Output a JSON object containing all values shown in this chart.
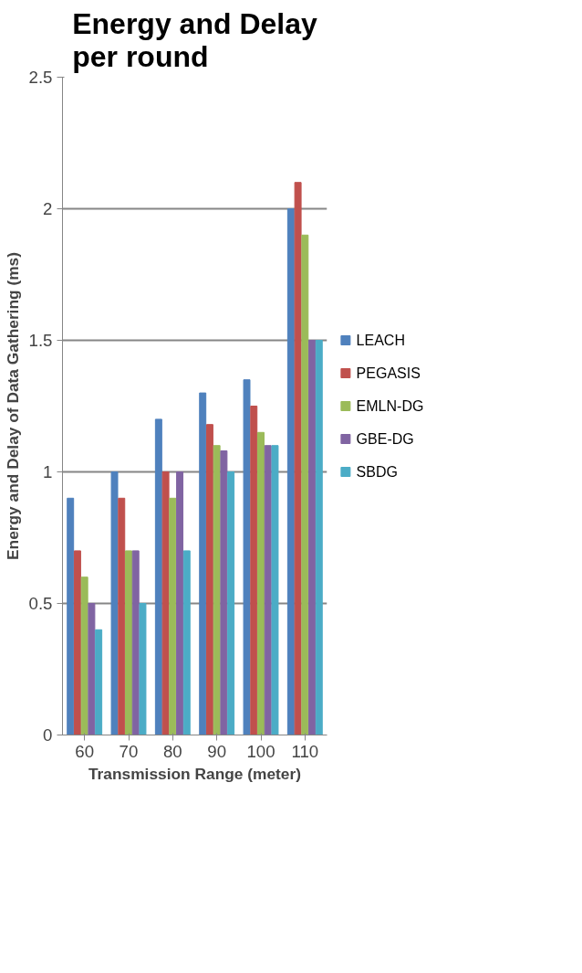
{
  "chart_data": {
    "type": "bar",
    "title": "Energy and Delay per round",
    "xlabel": "Transmission Range (meter)",
    "ylabel": "Energy and Delay of Data Gathering (ms)",
    "categories": [
      "60",
      "70",
      "80",
      "90",
      "100",
      "110"
    ],
    "series": [
      {
        "name": "LEACH",
        "color": "#4f81bd",
        "values": [
          0.9,
          1.0,
          1.2,
          1.3,
          1.35,
          2.0
        ]
      },
      {
        "name": "PEGASIS",
        "color": "#c0504d",
        "values": [
          0.7,
          0.9,
          1.0,
          1.18,
          1.25,
          2.1
        ]
      },
      {
        "name": "EMLN-DG",
        "color": "#9bbb59",
        "values": [
          0.6,
          0.7,
          0.9,
          1.1,
          1.15,
          1.9
        ]
      },
      {
        "name": "GBE-DG",
        "color": "#8064a2",
        "values": [
          0.5,
          0.7,
          1.0,
          1.08,
          1.1,
          1.5
        ]
      },
      {
        "name": "SBDG",
        "color": "#4bacc6",
        "values": [
          0.4,
          0.5,
          0.7,
          1.0,
          1.1,
          1.5
        ]
      }
    ],
    "ylim": [
      0,
      2.5
    ],
    "yticks": [
      0,
      0.5,
      1,
      1.5,
      2,
      2.5
    ],
    "grid": "y",
    "legend": "right"
  }
}
